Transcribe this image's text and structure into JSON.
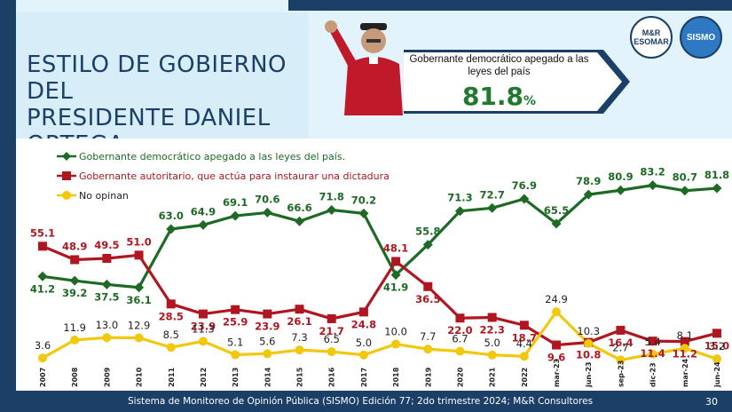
{
  "header": {
    "title_line1": "ESTILO DE GOBIERNO DEL",
    "title_line2": "PRESIDENTE DANIEL ORTEGA",
    "banner_text": "Gobernante democrático apegado a las leyes del país",
    "banner_value": "81.8",
    "banner_unit": "%",
    "logo1_line1": "M&R",
    "logo1_line2": "ESOMAR",
    "logo2_text": "SISMO"
  },
  "footer": {
    "text": "Sistema de Monitoreo de Opinión Pública (SISMO) Edición 77; 2do trimestre 2024; M&R Consultores",
    "page": "30"
  },
  "colors": {
    "green": "#1d6a24",
    "red": "#b01620",
    "yellow": "#f2c80f",
    "navy": "#1b3f66"
  },
  "chart_data": {
    "type": "line",
    "categories": [
      "2007",
      "2008",
      "2009",
      "2010",
      "2011",
      "2012",
      "2013",
      "2014",
      "2015",
      "2016",
      "2017",
      "2018",
      "2019",
      "2020",
      "2021",
      "2022",
      "mar-23",
      "jun-23",
      "sep-23",
      "dic-23",
      "mar-24",
      "jun-24"
    ],
    "series": [
      {
        "name": "Gobernante  democrático apegado a las leyes del país.",
        "color": "#1d6a24",
        "values": [
          41.2,
          39.2,
          37.5,
          36.1,
          63.0,
          64.9,
          69.1,
          70.6,
          66.6,
          71.8,
          70.2,
          41.9,
          55.8,
          71.3,
          72.7,
          76.9,
          65.5,
          78.9,
          80.9,
          83.2,
          80.7,
          81.8
        ],
        "labels": [
          "41.2",
          "39.2",
          "37.5",
          "36.1",
          "63.0",
          "64.9",
          "69.1",
          "70.6",
          "66.6",
          "71.8",
          "70.2",
          "41.9",
          "55.8",
          "71.3",
          "72.7",
          "76.9",
          "65.5",
          "78.9",
          "80.9",
          "83.2",
          "80.7",
          "81.8"
        ]
      },
      {
        "name": "Gobernante autoritario, que actúa para instaurar una dictadura",
        "color": "#b01620",
        "values": [
          55.1,
          48.9,
          49.5,
          51.0,
          28.5,
          23.9,
          25.9,
          23.9,
          26.1,
          21.7,
          24.8,
          48.1,
          36.5,
          22.0,
          22.3,
          18.7,
          9.6,
          10.8,
          16.4,
          11.4,
          11.2,
          15.0
        ],
        "labels": [
          "55.1",
          "48.9",
          "49.5",
          "51.0",
          "28.5",
          "23.9",
          "25.9",
          "23.9",
          "26.1",
          "21.7",
          "24.8",
          "48.1",
          "36.5",
          "22.0",
          "22.3",
          "18.7",
          "9.6",
          "10.8",
          "16.4",
          "11.4",
          "11.2",
          "15.0"
        ]
      },
      {
        "name": "No opinan",
        "color": "#f2c80f",
        "values": [
          3.6,
          11.9,
          13.0,
          12.9,
          8.5,
          11.3,
          5.1,
          5.6,
          7.3,
          6.5,
          5.0,
          10.0,
          7.7,
          6.7,
          5.0,
          4.4,
          24.9,
          10.3,
          2.7,
          5.4,
          8.1,
          3.2
        ],
        "labels": [
          "3.6",
          "11.9",
          "13.0",
          "12.9",
          "8.5",
          "11.3",
          "5.1",
          "5.6",
          "7.3",
          "6.5",
          "5.0",
          "10.0",
          "7.7",
          "6.7",
          "5.0",
          "4.4",
          "24.9",
          "10.3",
          "2.7",
          "5.4",
          "8.1",
          "3.2"
        ]
      }
    ],
    "ylim": [
      0,
      90
    ],
    "grid": false,
    "legend": "top-left"
  }
}
